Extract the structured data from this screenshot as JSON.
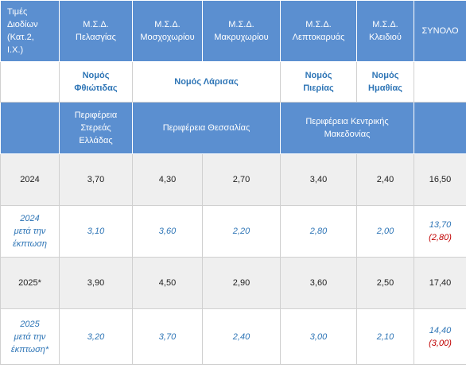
{
  "table": {
    "header": [
      "Τιμές\nΔιοδίων\n(Κατ.2,\nΙ.Χ.)",
      "Μ.Σ.Δ.\nΠελασγίας",
      "Μ.Σ.Δ.\nΜοσχοχωρίου",
      "Μ.Σ.Δ.\nΜακρυχωρίου",
      "Μ.Σ.Δ.\nΛεπτοκαρυάς",
      "Μ.Σ.Δ.\nΚλειδιού",
      "ΣΥΝΟΛΟ"
    ],
    "prefectures": [
      "Νομός\nΦθιώτιδας",
      "Νομός Λάρισας",
      "Νομός\nΠιερίας",
      "Νομός\nΗμαθίας"
    ],
    "regions": [
      "Περιφέρεια\nΣτερεάς\nΕλλάδας",
      "Περιφέρεια Θεσσαλίας",
      "Περιφέρεια Κεντρικής\nΜακεδονίας"
    ],
    "rows": [
      {
        "label": "2024",
        "values": [
          "3,70",
          "4,30",
          "2,70",
          "3,40",
          "2,40"
        ],
        "total": "16,50"
      },
      {
        "label": "2024\nμετά την\nέκπτωση",
        "values": [
          "3,10",
          "3,60",
          "2,20",
          "2,80",
          "2,00"
        ],
        "total": "13,70",
        "reduction": "(2,80)"
      },
      {
        "label": "2025*",
        "values": [
          "3,90",
          "4,50",
          "2,90",
          "3,60",
          "2,50"
        ],
        "total": "17,40"
      },
      {
        "label": "2025\nμετά την\nέκπτωση*",
        "values": [
          "3,20",
          "3,70",
          "2,40",
          "3,00",
          "2,10"
        ],
        "total": "14,40",
        "reduction": "(3,00)"
      }
    ]
  }
}
